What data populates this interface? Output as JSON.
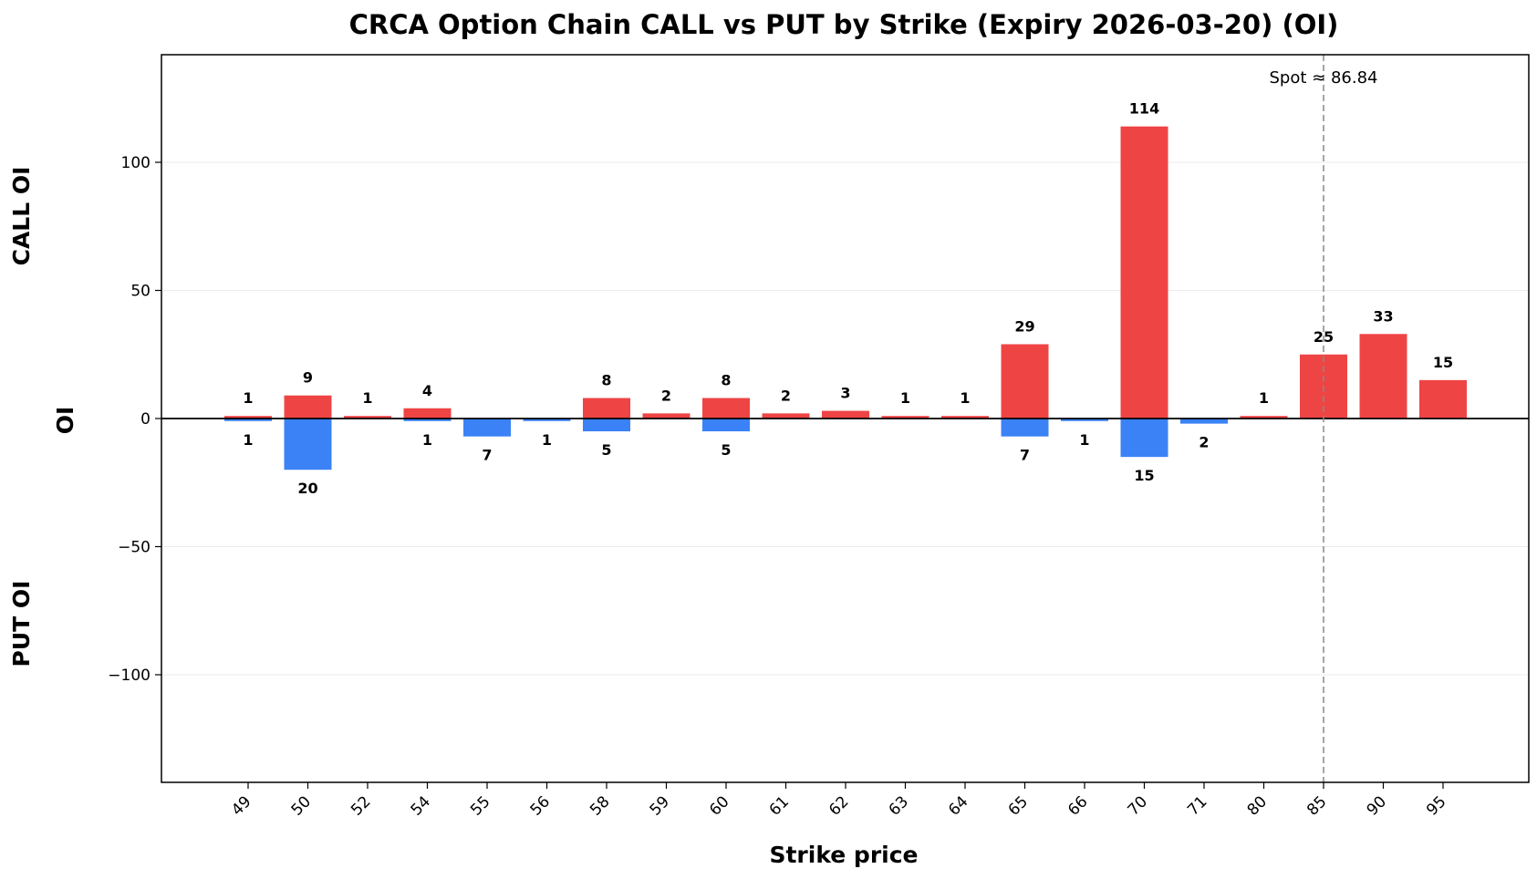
{
  "chart_data": {
    "type": "bar",
    "title": "CRCA Option Chain CALL vs PUT by Strike (Expiry 2026-03-20) (OI)",
    "xlabel": "Strike price",
    "ylabel": "OI",
    "upper_label": "CALL OI",
    "lower_label": "PUT OI",
    "categories": [
      "49",
      "50",
      "52",
      "54",
      "55",
      "56",
      "58",
      "59",
      "60",
      "61",
      "62",
      "63",
      "64",
      "65",
      "66",
      "70",
      "71",
      "80",
      "85",
      "90",
      "95"
    ],
    "series": [
      {
        "name": "CALL",
        "color": "#ef4444",
        "values": [
          1,
          9,
          1,
          4,
          0,
          0,
          8,
          2,
          8,
          2,
          3,
          1,
          1,
          29,
          0,
          114,
          0,
          1,
          25,
          33,
          15
        ]
      },
      {
        "name": "PUT",
        "color": "#3b82f6",
        "values": [
          1,
          20,
          0,
          1,
          7,
          1,
          5,
          0,
          5,
          0,
          0,
          0,
          0,
          7,
          1,
          15,
          2,
          0,
          0,
          0,
          0
        ]
      }
    ],
    "ylim": [
      -142,
      142
    ],
    "yticks": [
      -100,
      -50,
      0,
      50,
      100
    ],
    "ytick_labels": [
      "−100",
      "−50",
      "0",
      "50",
      "100"
    ],
    "grid": true,
    "spot": {
      "value": 86.84,
      "label": "Spot ≈ 86.84",
      "position_category_index": 18
    }
  }
}
